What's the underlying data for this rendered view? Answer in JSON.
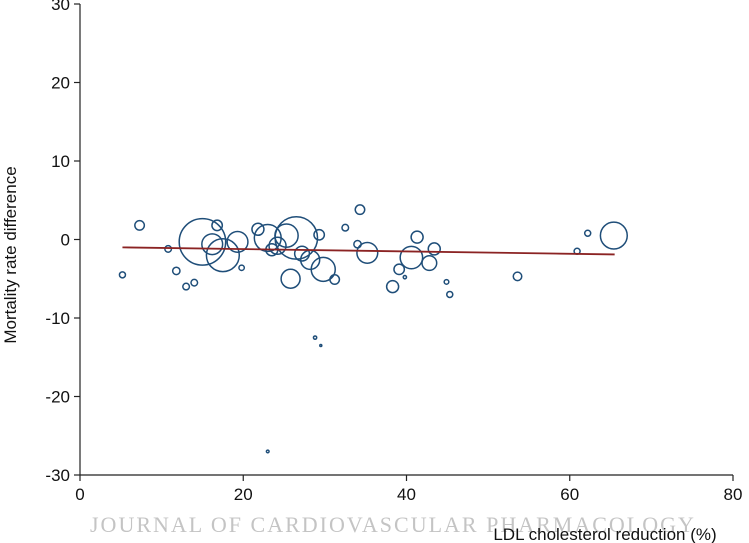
{
  "chart_data": {
    "type": "scatter",
    "subtype": "bubble",
    "title": "",
    "xlabel": "LDL cholesterol reduction (%)",
    "ylabel": "Mortality rate difference",
    "xlim": [
      0,
      80
    ],
    "ylim": [
      -30,
      30
    ],
    "x_ticks": [
      "0",
      "20",
      "40",
      "60",
      "80"
    ],
    "y_ticks": [
      "-30",
      "-20",
      "-10",
      "0",
      "10",
      "20",
      "30"
    ],
    "grid": false,
    "legend": "none",
    "colors": {
      "bubble": "#1f4e79",
      "regression_line": "#8b2323",
      "axis": "#222222"
    },
    "points": [
      {
        "x": 5.2,
        "y": -4.5,
        "w": 1
      },
      {
        "x": 7.3,
        "y": 1.8,
        "w": 2.5
      },
      {
        "x": 10.8,
        "y": -1.2,
        "w": 1.2
      },
      {
        "x": 11.8,
        "y": -4.0,
        "w": 1.5
      },
      {
        "x": 13.0,
        "y": -6.0,
        "w": 1.2
      },
      {
        "x": 14.0,
        "y": -5.5,
        "w": 1.2
      },
      {
        "x": 15.0,
        "y": -0.3,
        "w": 60
      },
      {
        "x": 16.2,
        "y": -0.6,
        "w": 12
      },
      {
        "x": 16.8,
        "y": 1.8,
        "w": 3
      },
      {
        "x": 17.5,
        "y": -2.0,
        "w": 30
      },
      {
        "x": 19.3,
        "y": -0.3,
        "w": 12
      },
      {
        "x": 19.8,
        "y": -3.6,
        "w": 0.8
      },
      {
        "x": 21.8,
        "y": 1.3,
        "w": 4
      },
      {
        "x": 23.0,
        "y": 0.2,
        "w": 20
      },
      {
        "x": 23.5,
        "y": -1.3,
        "w": 4
      },
      {
        "x": 24.2,
        "y": -0.8,
        "w": 8
      },
      {
        "x": 25.3,
        "y": 0.5,
        "w": 15
      },
      {
        "x": 25.8,
        "y": -5.0,
        "w": 10
      },
      {
        "x": 26.5,
        "y": 0.2,
        "w": 50
      },
      {
        "x": 27.2,
        "y": -1.8,
        "w": 6
      },
      {
        "x": 28.2,
        "y": -2.6,
        "w": 10
      },
      {
        "x": 28.8,
        "y": -12.5,
        "w": 0.3
      },
      {
        "x": 29.3,
        "y": 0.6,
        "w": 3
      },
      {
        "x": 29.5,
        "y": -13.5,
        "w": 0.1
      },
      {
        "x": 29.8,
        "y": -3.8,
        "w": 16
      },
      {
        "x": 31.2,
        "y": -5.1,
        "w": 2.5
      },
      {
        "x": 32.5,
        "y": 1.5,
        "w": 1.2
      },
      {
        "x": 34.0,
        "y": -0.6,
        "w": 1.5
      },
      {
        "x": 34.3,
        "y": 3.8,
        "w": 2.5
      },
      {
        "x": 35.2,
        "y": -1.7,
        "w": 12
      },
      {
        "x": 38.3,
        "y": -6.0,
        "w": 4
      },
      {
        "x": 39.1,
        "y": -3.8,
        "w": 3
      },
      {
        "x": 39.8,
        "y": -4.8,
        "w": 0.3
      },
      {
        "x": 40.6,
        "y": -2.3,
        "w": 14
      },
      {
        "x": 41.3,
        "y": 0.3,
        "w": 4
      },
      {
        "x": 42.8,
        "y": -3.0,
        "w": 6
      },
      {
        "x": 43.4,
        "y": -1.2,
        "w": 4
      },
      {
        "x": 44.9,
        "y": -5.4,
        "w": 0.6
      },
      {
        "x": 45.3,
        "y": -7.0,
        "w": 1
      },
      {
        "x": 53.6,
        "y": -4.7,
        "w": 2
      },
      {
        "x": 60.9,
        "y": -1.5,
        "w": 1
      },
      {
        "x": 62.2,
        "y": 0.8,
        "w": 1
      },
      {
        "x": 65.4,
        "y": 0.5,
        "w": 20
      },
      {
        "x": 23.0,
        "y": -27.0,
        "w": 0.2
      }
    ],
    "regression_line": {
      "x": [
        5.2,
        65.5
      ],
      "y": [
        -1.0,
        -1.9
      ]
    }
  },
  "watermark": "JOURNAL OF CARDIOVASCULAR PHARMACOLOGY"
}
